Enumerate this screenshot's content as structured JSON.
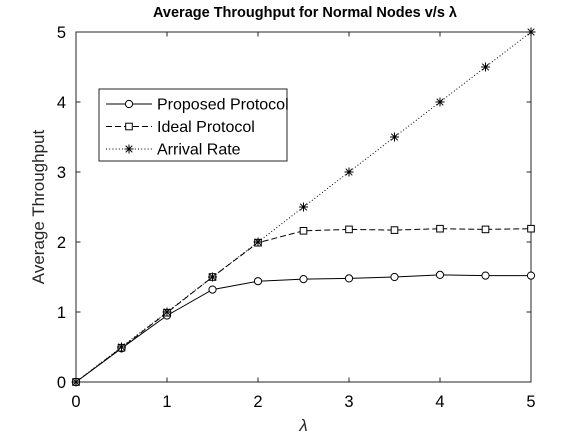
{
  "chart_data": {
    "type": "line",
    "title": "Average Throughput for Normal Nodes v/s λ",
    "xlabel": "λ",
    "ylabel": "Average Throughput",
    "xlim": [
      0,
      5
    ],
    "ylim": [
      0,
      5
    ],
    "x_ticks": [
      "0",
      "1",
      "2",
      "3",
      "4",
      "5"
    ],
    "y_ticks": [
      "0",
      "1",
      "2",
      "3",
      "4",
      "5"
    ],
    "grid": false,
    "legend_position": "upper-left",
    "x": [
      0,
      0.5,
      1,
      1.5,
      2,
      2.5,
      3,
      3.5,
      4,
      4.5,
      5
    ],
    "series": [
      {
        "name": "Proposed Protocol",
        "line": "solid",
        "marker": "circle",
        "values": [
          0,
          0.48,
          0.95,
          1.32,
          1.44,
          1.47,
          1.48,
          1.5,
          1.53,
          1.52,
          1.52
        ]
      },
      {
        "name": "Ideal Protocol",
        "line": "dashed",
        "marker": "square",
        "values": [
          0,
          0.49,
          0.99,
          1.5,
          1.99,
          2.16,
          2.18,
          2.17,
          2.19,
          2.18,
          2.19
        ]
      },
      {
        "name": "Arrival Rate",
        "line": "dotted",
        "marker": "asterisk",
        "values": [
          0,
          0.5,
          1.0,
          1.5,
          2.0,
          2.5,
          3.0,
          3.5,
          4.0,
          4.5,
          5.0
        ]
      }
    ]
  }
}
